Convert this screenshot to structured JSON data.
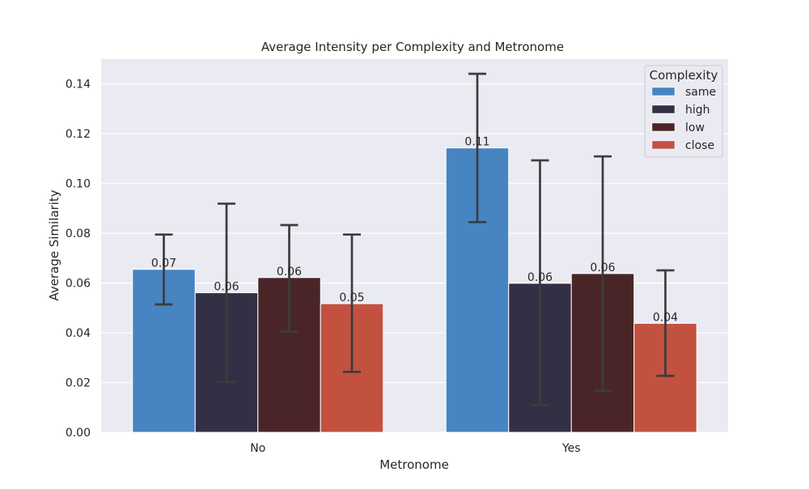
{
  "chart_data": {
    "type": "bar",
    "title": "Average Intensity per Complexity and Metronome",
    "xlabel": "Metronome",
    "ylabel": "Average Similarity",
    "categories": [
      "No",
      "Yes"
    ],
    "ylim": [
      0,
      0.15
    ],
    "yticks": [
      0.0,
      0.02,
      0.04,
      0.06,
      0.08,
      0.1,
      0.12,
      0.14
    ],
    "ytick_labels": [
      "0.00",
      "0.02",
      "0.04",
      "0.06",
      "0.08",
      "0.10",
      "0.12",
      "0.14"
    ],
    "grid": true,
    "legend": {
      "title": "Complexity",
      "position": "top-right"
    },
    "series": [
      {
        "name": "same",
        "color": "#4684c2",
        "values": [
          0.0655,
          0.1143
        ],
        "labels": [
          "0.07",
          "0.11"
        ],
        "err_low": [
          0.0514,
          0.0845
        ],
        "err_high": [
          0.0795,
          0.1441
        ]
      },
      {
        "name": "high",
        "color": "#332f44",
        "values": [
          0.0561,
          0.0599
        ],
        "labels": [
          "0.06",
          "0.06"
        ],
        "err_low": [
          0.0203,
          0.0109
        ],
        "err_high": [
          0.0919,
          0.1093
        ]
      },
      {
        "name": "low",
        "color": "#4a2528",
        "values": [
          0.0622,
          0.0638
        ],
        "labels": [
          "0.06",
          "0.06"
        ],
        "err_low": [
          0.0405,
          0.0166
        ],
        "err_high": [
          0.0833,
          0.1109
        ]
      },
      {
        "name": "close",
        "color": "#c25140",
        "values": [
          0.0517,
          0.0438
        ],
        "labels": [
          "0.05",
          "0.04"
        ],
        "err_low": [
          0.0243,
          0.0227
        ],
        "err_high": [
          0.0795,
          0.0651
        ]
      }
    ],
    "colors": {
      "plot_background": "#eaeaf2",
      "grid": "#ffffff",
      "error_bar": "#3c3c3c"
    }
  }
}
